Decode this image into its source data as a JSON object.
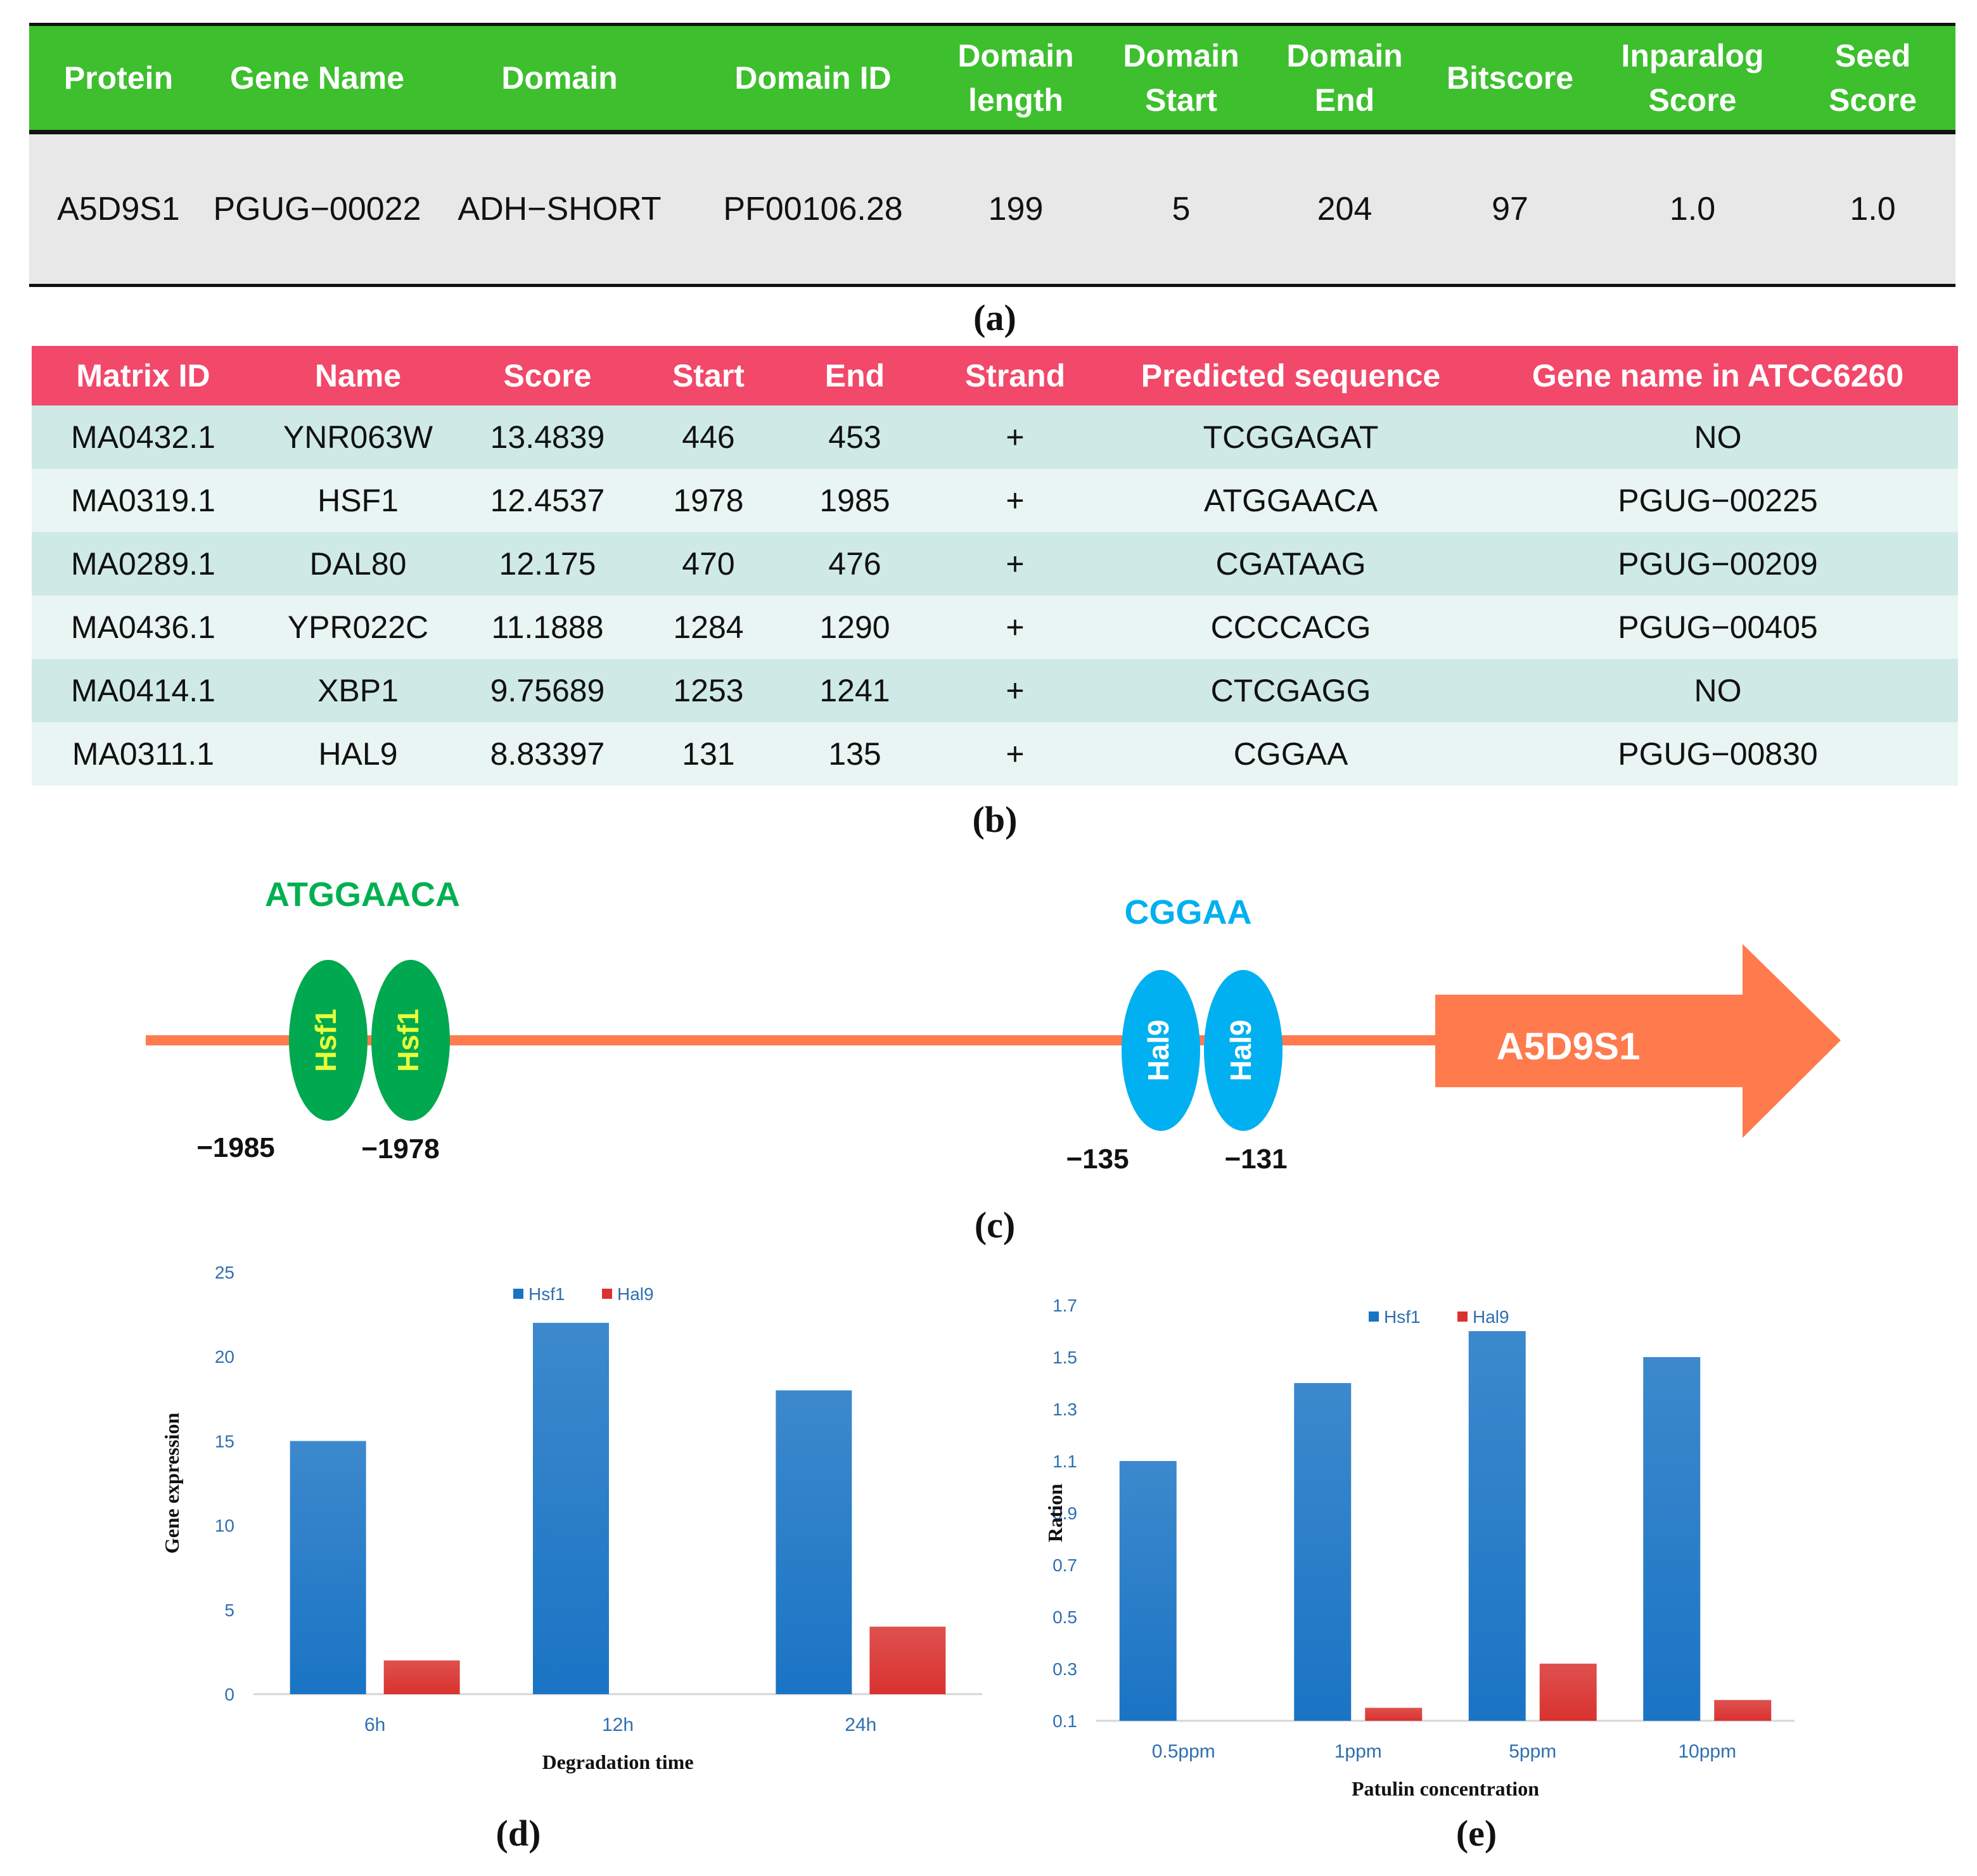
{
  "tableA": {
    "headers": [
      "Protein",
      "Gene Name",
      "Domain",
      "Domain ID",
      "Domain\nlength",
      "Domain\nStart",
      "Domain\nEnd",
      "Bitscore",
      "Inparalog\nScore",
      "Seed\nScore"
    ],
    "row": [
      "A5D9S1",
      "PGUG−00022",
      "ADH−SHORT",
      "PF00106.28",
      "199",
      "5",
      "204",
      "97",
      "1.0",
      "1.0"
    ],
    "caption": "(a)"
  },
  "tableB": {
    "headers": [
      "Matrix ID",
      "Name",
      "Score",
      "Start",
      "End",
      "Strand",
      "Predicted sequence",
      "Gene name in ATCC6260"
    ],
    "rows": [
      [
        "MA0432.1",
        "YNR063W",
        "13.4839",
        "446",
        "453",
        "+",
        "TCGGAGAT",
        "NO"
      ],
      [
        "MA0319.1",
        "HSF1",
        "12.4537",
        "1978",
        "1985",
        "+",
        "ATGGAACA",
        "PGUG−00225"
      ],
      [
        "MA0289.1",
        "DAL80",
        "12.175",
        "470",
        "476",
        "+",
        "CGATAAG",
        "PGUG−00209"
      ],
      [
        "MA0436.1",
        "YPR022C",
        "11.1888",
        "1284",
        "1290",
        "+",
        "CCCCACG",
        "PGUG−00405"
      ],
      [
        "MA0414.1",
        "XBP1",
        "9.75689",
        "1253",
        "1241",
        "+",
        "CTCGAGG",
        "NO"
      ],
      [
        "MA0311.1",
        "HAL9",
        "8.83397",
        "131",
        "135",
        "+",
        "CGGAA",
        "PGUG−00830"
      ]
    ],
    "caption": "(b)"
  },
  "diagram": {
    "hsf_seq": "ATGGAACA",
    "hal_seq": "CGGAA",
    "hsf_label": "Hsf1",
    "hal_label": "Hal9",
    "gene_label": "A5D9S1",
    "pos_1985": "−1985",
    "pos_1978": "−1978",
    "pos_135": "−135",
    "pos_131": "−131",
    "caption": "(c)",
    "colors": {
      "line": "#ff7a4d",
      "hsf": "#00a84f",
      "hsf_text": "#e8ff3a",
      "hal": "#00b0f0",
      "seq_green": "#00b050",
      "seq_blue": "#00b0f0"
    }
  },
  "chart_data": [
    {
      "type": "bar",
      "title": "",
      "categories": [
        "6h",
        "12h",
        "24h"
      ],
      "series": [
        {
          "name": "Hsf1",
          "values": [
            15,
            22,
            18
          ],
          "color": "#1a74c4"
        },
        {
          "name": "Hal9",
          "values": [
            2,
            0,
            4
          ],
          "color": "#d9322f"
        }
      ],
      "xlabel": "Degradation  time",
      "ylabel": "Gene expression",
      "ylim": [
        0,
        25
      ],
      "yticks": [
        "0",
        "5",
        "10",
        "15",
        "20",
        "25"
      ],
      "legend": "top-center",
      "caption": "(d)"
    },
    {
      "type": "bar",
      "title": "",
      "categories": [
        "0.5ppm",
        "1ppm",
        "5ppm",
        "10ppm"
      ],
      "series": [
        {
          "name": "Hsf1",
          "values": [
            1.1,
            1.4,
            1.6,
            1.5
          ],
          "color": "#1a74c4"
        },
        {
          "name": "Hal9",
          "values": [
            0.1,
            0.15,
            0.32,
            0.18
          ],
          "color": "#d9322f"
        }
      ],
      "xlabel": "Patulin concentration",
      "ylabel": "Ration",
      "ylim": [
        0.1,
        1.7
      ],
      "yticks": [
        "0.1",
        "0.3",
        "0.5",
        "0.7",
        "0.9",
        "1.1",
        "1.3",
        "1.5",
        "1.7"
      ],
      "legend": "top-center",
      "caption": "(e)"
    }
  ]
}
